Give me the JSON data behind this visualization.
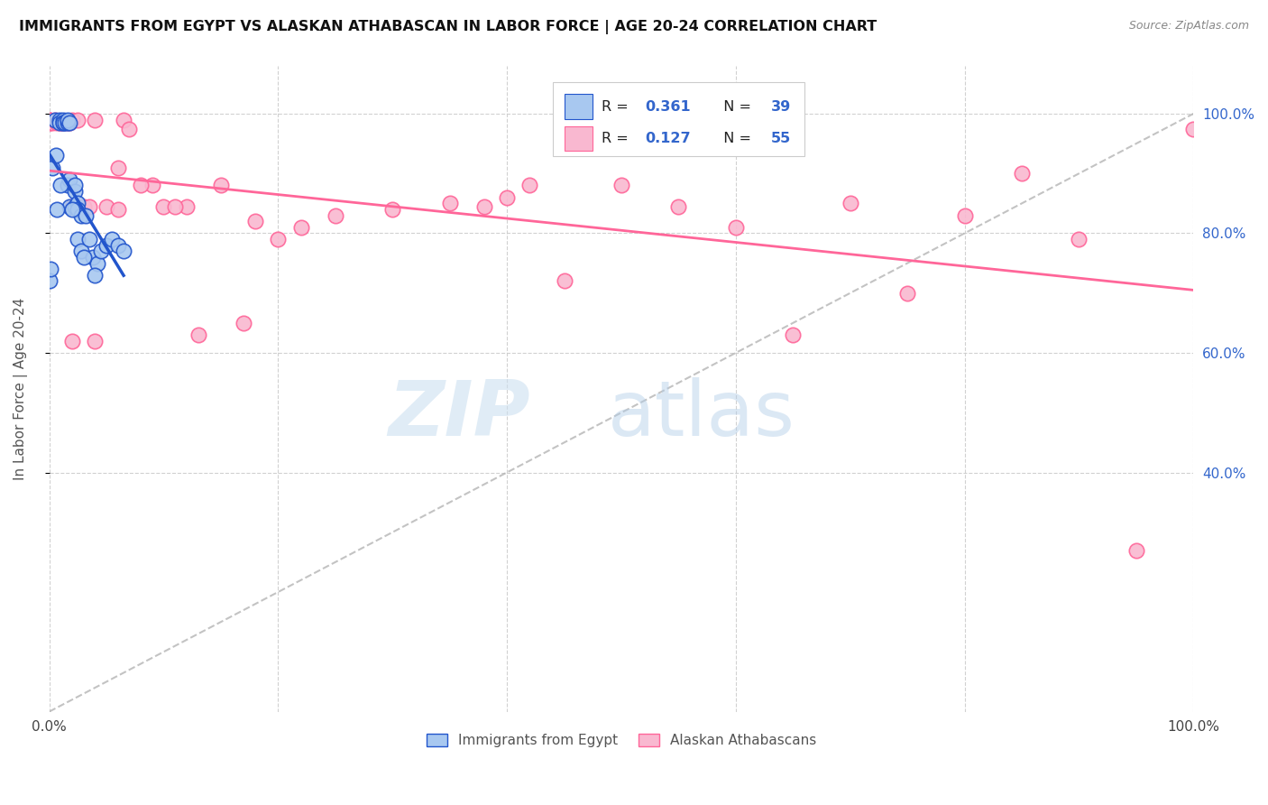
{
  "title": "IMMIGRANTS FROM EGYPT VS ALASKAN ATHABASCAN IN LABOR FORCE | AGE 20-24 CORRELATION CHART",
  "source": "Source: ZipAtlas.com",
  "ylabel": "In Labor Force | Age 20-24",
  "xlim": [
    0,
    1.0
  ],
  "ylim": [
    0,
    1.08
  ],
  "legend_label1": "Immigrants from Egypt",
  "legend_label2": "Alaskan Athabascans",
  "color_blue": "#A8C8F0",
  "color_pink": "#F9B8D0",
  "color_blue_line": "#2255CC",
  "color_pink_line": "#FF6699",
  "color_r_text": "#3366CC",
  "egypt_x": [
    0.005,
    0.009,
    0.009,
    0.012,
    0.012,
    0.012,
    0.014,
    0.016,
    0.016,
    0.016,
    0.018,
    0.018,
    0.018,
    0.022,
    0.022,
    0.022,
    0.025,
    0.025,
    0.025,
    0.028,
    0.028,
    0.032,
    0.035,
    0.038,
    0.042,
    0.045,
    0.05,
    0.055,
    0.06,
    0.065,
    0.003,
    0.006,
    0.01,
    0.02,
    0.03,
    0.04,
    0.0,
    0.001,
    0.007
  ],
  "egypt_y": [
    0.99,
    0.99,
    0.985,
    0.99,
    0.985,
    0.985,
    0.985,
    0.985,
    0.99,
    0.88,
    0.985,
    0.89,
    0.845,
    0.87,
    0.88,
    0.845,
    0.85,
    0.84,
    0.79,
    0.83,
    0.77,
    0.83,
    0.79,
    0.76,
    0.75,
    0.77,
    0.78,
    0.79,
    0.78,
    0.77,
    0.91,
    0.93,
    0.88,
    0.84,
    0.76,
    0.73,
    0.72,
    0.74,
    0.84
  ],
  "athabascan_x": [
    0.0,
    0.0,
    0.0,
    0.0,
    0.003,
    0.005,
    0.007,
    0.01,
    0.01,
    0.012,
    0.015,
    0.018,
    0.02,
    0.02,
    0.025,
    0.025,
    0.03,
    0.035,
    0.04,
    0.05,
    0.06,
    0.065,
    0.07,
    0.09,
    0.1,
    0.12,
    0.15,
    0.18,
    0.2,
    0.25,
    0.3,
    0.35,
    0.4,
    0.45,
    0.5,
    0.55,
    0.6,
    0.65,
    0.7,
    0.75,
    0.8,
    0.85,
    0.9,
    0.95,
    1.0,
    0.38,
    0.42,
    0.22,
    0.17,
    0.13,
    0.11,
    0.08,
    0.06,
    0.04,
    0.02
  ],
  "athabascan_y": [
    0.99,
    0.99,
    0.985,
    0.985,
    0.985,
    0.99,
    0.985,
    0.985,
    0.985,
    0.985,
    0.985,
    0.985,
    0.99,
    0.845,
    0.99,
    0.845,
    0.845,
    0.845,
    0.99,
    0.845,
    0.91,
    0.99,
    0.975,
    0.88,
    0.845,
    0.845,
    0.88,
    0.82,
    0.79,
    0.83,
    0.84,
    0.85,
    0.86,
    0.72,
    0.88,
    0.845,
    0.81,
    0.63,
    0.85,
    0.7,
    0.83,
    0.9,
    0.79,
    0.27,
    0.975,
    0.845,
    0.88,
    0.81,
    0.65,
    0.63,
    0.845,
    0.88,
    0.84,
    0.62,
    0.62
  ]
}
